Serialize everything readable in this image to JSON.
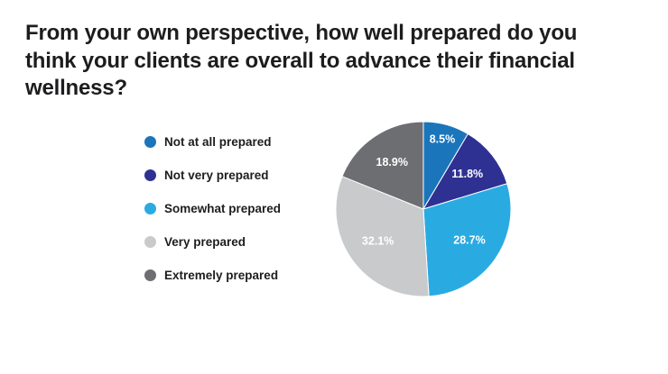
{
  "title": "From your own perspective, how well prepared do you think your clients are overall to advance their financial wellness?",
  "chart_data": {
    "type": "pie",
    "labels": [
      "Not at all prepared",
      "Not very prepared",
      "Somewhat prepared",
      "Very prepared",
      "Extremely prepared"
    ],
    "values": [
      8.5,
      11.8,
      28.7,
      32.1,
      18.9
    ],
    "value_labels": [
      "8.5%",
      "11.8%",
      "28.7%",
      "32.1%",
      "18.9%"
    ],
    "colors": [
      "#1B75BB",
      "#2E3192",
      "#29ABE2",
      "#C9CACC",
      "#6D6E71"
    ],
    "start_angle_deg": 0,
    "direction": "clockwise",
    "legend_position": "left",
    "slice_label_color": "#FFFFFF",
    "title_color": "#1D1D1F"
  }
}
